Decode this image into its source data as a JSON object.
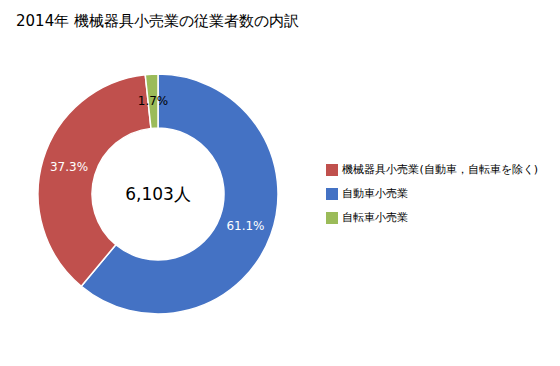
{
  "chart_data": {
    "type": "pie",
    "title": "2014年 機械器具小売業の従業者数の内訳",
    "annotations": [
      "6,103人"
    ],
    "categories": [
      "自動車小売業",
      "機械器具小売業(自動車，自転車を除く)",
      "自転車小売業"
    ],
    "values": [
      61.1,
      37.3,
      1.7
    ],
    "value_labels": [
      "61.1%",
      "37.3%",
      "1.7%"
    ],
    "colors": [
      "#4472C4",
      "#C0504D",
      "#9BBB59"
    ],
    "data_labels": true,
    "legend": "right"
  }
}
